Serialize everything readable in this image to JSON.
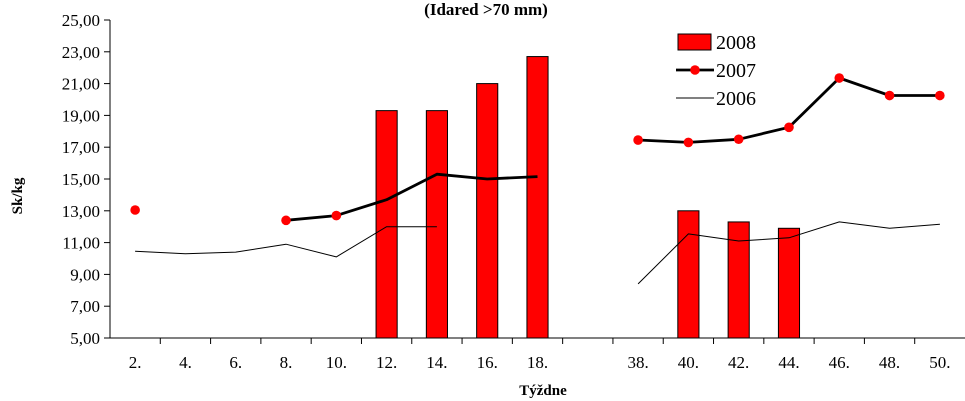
{
  "chart_data": {
    "type": "bar",
    "title": "(Idared >70 mm)",
    "xlabel": "Týždne",
    "ylabel": "Sk/kg",
    "ylim": [
      5,
      25
    ],
    "yticks": [
      "5,00",
      "7,00",
      "9,00",
      "11,00",
      "13,00",
      "15,00",
      "17,00",
      "19,00",
      "21,00",
      "23,00",
      "25,00"
    ],
    "categories": [
      "2.",
      "4.",
      "6.",
      "8.",
      "10.",
      "12.",
      "14.",
      "16.",
      "18.",
      "",
      "38.",
      "40.",
      "42.",
      "44.",
      "46.",
      "48.",
      "50."
    ],
    "legend_position": "top-right",
    "grid": false,
    "series": [
      {
        "name": "2008",
        "kind": "bar",
        "color": "#ff0000",
        "values": [
          null,
          null,
          null,
          null,
          null,
          19.3,
          19.3,
          21.0,
          22.7,
          null,
          null,
          13.0,
          12.3,
          11.9,
          null,
          null,
          null
        ]
      },
      {
        "name": "2007",
        "kind": "line-markers",
        "color": "#000000",
        "marker_color": "#ff0000",
        "values": [
          13.05,
          null,
          null,
          12.4,
          12.7,
          13.7,
          15.3,
          15.0,
          15.15,
          null,
          17.45,
          17.3,
          17.5,
          18.25,
          21.35,
          20.25,
          20.25
        ],
        "markers": [
          true,
          false,
          false,
          true,
          true,
          false,
          false,
          false,
          false,
          false,
          true,
          true,
          true,
          true,
          true,
          true,
          true
        ],
        "line_segments": [
          [
            3,
            8
          ],
          [
            10,
            16
          ]
        ]
      },
      {
        "name": "2006",
        "kind": "line",
        "color": "#000000",
        "values": [
          10.45,
          10.3,
          10.4,
          10.9,
          10.1,
          12.0,
          12.0,
          null,
          null,
          null,
          8.4,
          11.55,
          11.1,
          11.3,
          12.3,
          11.9,
          12.15
        ],
        "line_segments": [
          [
            0,
            6
          ],
          [
            10,
            16
          ]
        ]
      }
    ]
  }
}
